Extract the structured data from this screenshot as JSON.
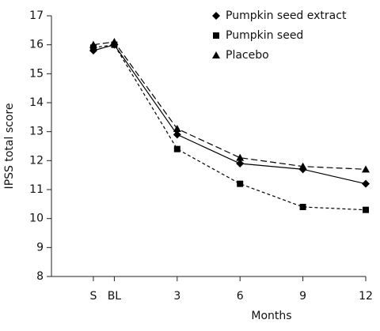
{
  "chart_data": {
    "type": "line",
    "y_label": "IPSS total score",
    "x_label": "Months",
    "x": [
      -1,
      0,
      3,
      6,
      9,
      12
    ],
    "xlim": [
      -3,
      12
    ],
    "xticks": [
      {
        "value": -1,
        "label": "S"
      },
      {
        "value": 0,
        "label": "BL"
      },
      3,
      6,
      9,
      12
    ],
    "ylim": [
      8,
      17
    ],
    "yticks": [
      8,
      9,
      10,
      11,
      12,
      13,
      14,
      15,
      16,
      17
    ],
    "series": [
      {
        "name": "Pumpkin seed extract",
        "color": "#000000",
        "marker": "diamond",
        "line_style": "solid",
        "values": [
          15.8,
          16.0,
          12.9,
          11.9,
          11.7,
          11.2
        ]
      },
      {
        "name": "Pumpkin seed",
        "color": "#000000",
        "marker": "square",
        "line_style": "dashed",
        "values": [
          15.9,
          16.0,
          12.4,
          11.2,
          10.4,
          10.3
        ]
      },
      {
        "name": "Placebo",
        "color": "#000000",
        "marker": "triangle",
        "line_style": "long-dashed",
        "values": [
          16.0,
          16.1,
          13.1,
          12.1,
          11.8,
          11.7
        ]
      }
    ],
    "legend": "top-right"
  }
}
